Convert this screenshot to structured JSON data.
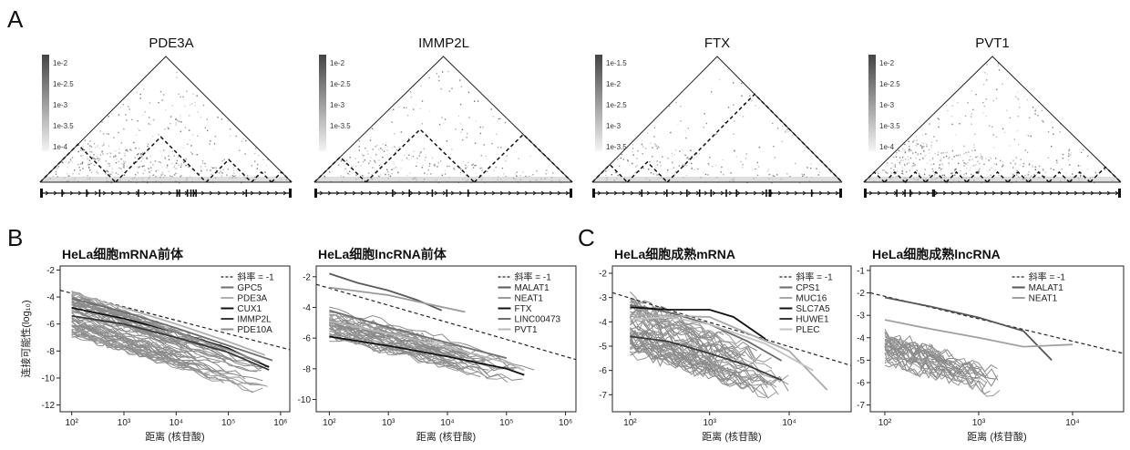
{
  "panel_labels": {
    "a": "A",
    "b": "B",
    "c": "C"
  },
  "heatmaps": [
    {
      "title": "PDE3A",
      "colorbar_ticks": [
        "1e-2",
        "1e-2.5",
        "1e-3",
        "1e-3.5",
        "1e-4"
      ],
      "domains": [
        [
          0.0,
          0.3
        ],
        [
          0.3,
          0.66
        ],
        [
          0.66,
          0.84
        ],
        [
          0.84,
          0.92
        ],
        [
          0.92,
          1.0
        ]
      ],
      "density": 0.55
    },
    {
      "title": "IMMP2L",
      "colorbar_ticks": [
        "1e-2",
        "1e-2.5",
        "1e-3",
        "1e-3.5"
      ],
      "domains": [
        [
          0.0,
          0.2
        ],
        [
          0.2,
          0.62
        ],
        [
          0.62,
          1.0
        ]
      ],
      "density": 0.35
    },
    {
      "title": "FTX",
      "colorbar_ticks": [
        "1e-1.5",
        "1e-2",
        "1e-2.5",
        "1e-3",
        "1e-3.5"
      ],
      "domains": [
        [
          0.0,
          0.14
        ],
        [
          0.14,
          0.3
        ],
        [
          0.3,
          1.0
        ]
      ],
      "density": 0.25
    },
    {
      "title": "PVT1",
      "colorbar_ticks": [
        "1e-2",
        "1e-2.5",
        "1e-3",
        "1e-3.5",
        "1e-4"
      ],
      "domains": [
        [
          0.0,
          0.08
        ],
        [
          0.08,
          0.16
        ],
        [
          0.16,
          0.24
        ],
        [
          0.24,
          0.32
        ],
        [
          0.32,
          0.4
        ],
        [
          0.4,
          0.48
        ],
        [
          0.48,
          0.56
        ],
        [
          0.56,
          0.64
        ],
        [
          0.64,
          0.72
        ],
        [
          0.72,
          0.8
        ],
        [
          0.8,
          0.88
        ],
        [
          0.88,
          1.0
        ]
      ],
      "density": 0.5
    }
  ],
  "y_axis_label": "连接可能性(log₁₀)",
  "x_axis_label": "距离 (核苷酸)",
  "chart_data": [
    {
      "type": "line",
      "title": "HeLa细胞mRNA前体",
      "xlabel": "距离 (核苷酸)",
      "ylabel": "连接可能性(log₁₀)",
      "x_log": true,
      "xlim": [
        60,
        1500000
      ],
      "ylim": [
        -12.5,
        -1.7
      ],
      "x_ticks": [
        {
          "v": 100,
          "label": "10²"
        },
        {
          "v": 1000,
          "label": "10³"
        },
        {
          "v": 10000,
          "label": "10⁴"
        },
        {
          "v": 100000,
          "label": "10⁵"
        },
        {
          "v": 1000000,
          "label": "10⁶"
        }
      ],
      "y_ticks": [
        -2,
        -4,
        -6,
        -8,
        -10,
        -12
      ],
      "legend": [
        "斜率 = -1",
        "GPC5",
        "PDE3A",
        "CUX1",
        "IMMP2L",
        "PDE10A"
      ],
      "background_band": {
        "x_start": 100,
        "x_end": 700000,
        "upper": [
          -3.6,
          -9.0
        ],
        "lower": [
          -6.8,
          -11.3
        ],
        "n_lines": 60
      },
      "series": [
        {
          "name": "斜率 = -1",
          "style": "dashed",
          "color": "#222222",
          "x": [
            60,
            1500000
          ],
          "y": [
            -3.5,
            -7.9
          ]
        },
        {
          "name": "GPC5",
          "color": "#6e6e6e",
          "x": [
            100,
            1000,
            10000,
            100000,
            700000
          ],
          "y": [
            -4.1,
            -5.1,
            -6.3,
            -7.6,
            -8.7
          ]
        },
        {
          "name": "PDE3A",
          "color": "#b0b0b0",
          "x": [
            100,
            1000,
            10000,
            100000,
            500000
          ],
          "y": [
            -3.7,
            -4.8,
            -6.0,
            -7.3,
            -8.3
          ]
        },
        {
          "name": "CUX1",
          "color": "#111111",
          "x": [
            100,
            1000,
            10000,
            100000,
            600000
          ],
          "y": [
            -4.8,
            -5.6,
            -6.6,
            -7.8,
            -9.2
          ]
        },
        {
          "name": "IMMP2L",
          "color": "#3a3a3a",
          "x": [
            100,
            1000,
            10000,
            100000,
            600000
          ],
          "y": [
            -5.4,
            -6.0,
            -7.0,
            -8.1,
            -9.4
          ]
        },
        {
          "name": "PDE10A",
          "color": "#8c8c8c",
          "x": [
            100,
            1000,
            10000,
            100000,
            400000
          ],
          "y": [
            -4.4,
            -5.4,
            -6.6,
            -7.9,
            -8.8
          ]
        }
      ]
    },
    {
      "type": "line",
      "title": "HeLa细胞lncRNA前体",
      "xlabel": "距离 (核苷酸)",
      "ylabel": "",
      "x_log": true,
      "xlim": [
        60,
        1500000
      ],
      "ylim": [
        -10.8,
        -1.3
      ],
      "x_ticks": [
        {
          "v": 100,
          "label": "10²"
        },
        {
          "v": 1000,
          "label": "10³"
        },
        {
          "v": 10000,
          "label": "10⁴"
        },
        {
          "v": 100000,
          "label": "10⁵"
        },
        {
          "v": 1000000,
          "label": "10⁶"
        }
      ],
      "y_ticks": [
        -2,
        -4,
        -6,
        -8,
        -10
      ],
      "legend": [
        "斜率 = -1",
        "MALAT1",
        "NEAT1",
        "FTX",
        "LINC00473",
        "PVT1"
      ],
      "background_band": {
        "x_start": 100,
        "x_end": 300000,
        "upper": [
          -4.0,
          -7.6
        ],
        "lower": [
          -6.0,
          -9.2
        ],
        "n_lines": 40
      },
      "series": [
        {
          "name": "斜率 = -1",
          "style": "dashed",
          "color": "#222222",
          "x": [
            60,
            1500000
          ],
          "y": [
            -2.5,
            -7.4
          ]
        },
        {
          "name": "MALAT1",
          "color": "#5a5a5a",
          "x": [
            100,
            300,
            1000,
            3000,
            8000
          ],
          "y": [
            -1.8,
            -2.4,
            -2.9,
            -3.5,
            -4.2
          ]
        },
        {
          "name": "NEAT1",
          "color": "#9a9a9a",
          "x": [
            100,
            1000,
            5000,
            20000
          ],
          "y": [
            -2.7,
            -3.2,
            -3.8,
            -4.3
          ]
        },
        {
          "name": "FTX",
          "color": "#111111",
          "x": [
            100,
            1000,
            10000,
            100000,
            200000
          ],
          "y": [
            -5.9,
            -6.5,
            -7.2,
            -8.0,
            -8.4
          ]
        },
        {
          "name": "LINC00473",
          "color": "#707070",
          "x": [
            100,
            1000,
            10000,
            100000
          ],
          "y": [
            -4.2,
            -5.3,
            -6.3,
            -7.3
          ]
        },
        {
          "name": "PVT1",
          "color": "#b8b8b8",
          "x": [
            100,
            1000,
            10000,
            100000,
            200000
          ],
          "y": [
            -4.9,
            -5.7,
            -6.6,
            -7.6,
            -8.1
          ]
        }
      ]
    },
    {
      "type": "line",
      "title": "HeLa细胞成熟mRNA",
      "xlabel": "距离 (核苷酸)",
      "ylabel": "",
      "x_log": true,
      "xlim": [
        60,
        60000
      ],
      "ylim": [
        -7.7,
        -1.7
      ],
      "x_ticks": [
        {
          "v": 100,
          "label": "10²"
        },
        {
          "v": 1000,
          "label": "10³"
        },
        {
          "v": 10000,
          "label": "10⁴"
        }
      ],
      "y_ticks": [
        -2,
        -3,
        -4,
        -5,
        -6,
        -7
      ],
      "legend": [
        "斜率 = -1",
        "CPS1",
        "MUC16",
        "SLC7A5",
        "HUWE1",
        "PLEC"
      ],
      "background_band": {
        "x_start": 100,
        "x_end": 10000,
        "upper": [
          -2.9,
          -5.8
        ],
        "lower": [
          -5.2,
          -7.2
        ],
        "n_lines": 50
      },
      "series": [
        {
          "name": "斜率 = -1",
          "style": "dashed",
          "color": "#222222",
          "x": [
            60,
            60000
          ],
          "y": [
            -2.8,
            -5.8
          ]
        },
        {
          "name": "CPS1",
          "color": "#6a6a6a",
          "x": [
            100,
            300,
            1000,
            3000,
            8000
          ],
          "y": [
            -3.3,
            -3.6,
            -4.1,
            -4.8,
            -5.6
          ]
        },
        {
          "name": "MUC16",
          "color": "#a8a8a8",
          "x": [
            100,
            1000,
            10000,
            30000
          ],
          "y": [
            -3.7,
            -3.8,
            -5.2,
            -6.8
          ]
        },
        {
          "name": "SLC7A5",
          "color": "#111111",
          "x": [
            100,
            300,
            1000,
            2000,
            5000
          ],
          "y": [
            -3.4,
            -3.5,
            -3.5,
            -3.8,
            -4.7
          ]
        },
        {
          "name": "HUWE1",
          "color": "#3a3a3a",
          "x": [
            100,
            300,
            1000,
            3000,
            8000
          ],
          "y": [
            -4.6,
            -4.8,
            -5.3,
            -5.8,
            -6.4
          ]
        },
        {
          "name": "PLEC",
          "color": "#c2c2c2",
          "x": [
            100,
            300,
            1000,
            5000,
            20000
          ],
          "y": [
            -3.9,
            -3.8,
            -4.1,
            -4.9,
            -6.0
          ]
        }
      ]
    },
    {
      "type": "line",
      "title": "HeLa细胞成熟lncRNA",
      "xlabel": "距离 (核苷酸)",
      "ylabel": "",
      "x_log": true,
      "xlim": [
        70,
        35000
      ],
      "ylim": [
        -7.3,
        -0.8
      ],
      "x_ticks": [
        {
          "v": 100,
          "label": "10²"
        },
        {
          "v": 1000,
          "label": "10³"
        },
        {
          "v": 10000,
          "label": "10⁴"
        }
      ],
      "y_ticks": [
        -1,
        -2,
        -3,
        -4,
        -5,
        -6,
        -7
      ],
      "legend": [
        "斜率 = -1",
        "MALAT1",
        "NEAT1"
      ],
      "background_band": {
        "x_start": 100,
        "x_end": 2000,
        "upper": [
          -3.8,
          -5.6
        ],
        "lower": [
          -5.0,
          -6.6
        ],
        "n_lines": 30
      },
      "series": [
        {
          "name": "斜率 = -1",
          "style": "dashed",
          "color": "#222222",
          "x": [
            70,
            35000
          ],
          "y": [
            -2.0,
            -4.7
          ]
        },
        {
          "name": "MALAT1",
          "color": "#555555",
          "x": [
            100,
            300,
            1000,
            3000,
            6000
          ],
          "y": [
            -2.2,
            -2.6,
            -3.1,
            -3.7,
            -5.0
          ]
        },
        {
          "name": "NEAT1",
          "color": "#a0a0a0",
          "x": [
            100,
            300,
            1000,
            3000,
            10000
          ],
          "y": [
            -3.2,
            -3.6,
            -4.0,
            -4.4,
            -4.3
          ]
        }
      ]
    }
  ]
}
